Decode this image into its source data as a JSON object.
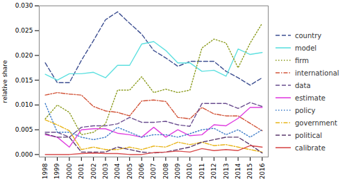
{
  "chart_data": {
    "type": "line",
    "y_label": "relative share",
    "x": [
      1998,
      1999,
      2000,
      2001,
      2002,
      2003,
      2004,
      2005,
      2006,
      2007,
      2008,
      2009,
      2010,
      2011,
      2012,
      2013,
      2014,
      2015,
      2016
    ],
    "xlim": [
      1997.5,
      2016.5
    ],
    "xticks": [
      1998,
      1999,
      2000,
      2001,
      2002,
      2003,
      2004,
      2005,
      2006,
      2007,
      2008,
      2009,
      2010,
      2011,
      2012,
      2013,
      2014,
      2015,
      2016
    ],
    "ylim": [
      -0.0005,
      0.03
    ],
    "yticks": [
      {
        "value": 0,
        "label": "0.000"
      },
      {
        "value": 0.005,
        "label": "0.005"
      },
      {
        "value": 0.01,
        "label": "0.010"
      },
      {
        "value": 0.015,
        "label": "0.015"
      },
      {
        "value": 0.02,
        "label": "0.020"
      },
      {
        "value": 0.025,
        "label": "0.025"
      },
      {
        "value": 0.03,
        "label": "0.030"
      }
    ],
    "grid": false,
    "legend": "right",
    "series": [
      {
        "name": "country",
        "color": "#3d4f91",
        "line_style": "dashed",
        "values": [
          0.0185,
          0.0145,
          0.0145,
          0.019,
          0.023,
          0.0272,
          0.0288,
          0.0265,
          0.0243,
          0.021,
          0.0195,
          0.0178,
          0.0188,
          0.0188,
          0.0188,
          0.0168,
          0.0155,
          0.014,
          0.0155
        ]
      },
      {
        "name": "model",
        "color": "#5ee0e0",
        "line_style": "solid",
        "values": [
          0.0162,
          0.015,
          0.0163,
          0.0163,
          0.0166,
          0.0155,
          0.018,
          0.018,
          0.0223,
          0.0228,
          0.021,
          0.0185,
          0.0185,
          0.0168,
          0.017,
          0.0158,
          0.0213,
          0.0202,
          0.0206
        ]
      },
      {
        "name": "firm",
        "color": "#8a9a1b",
        "line_style": "dotted",
        "values": [
          0.0072,
          0.01,
          0.0085,
          0.004,
          0.0045,
          0.0062,
          0.013,
          0.013,
          0.0157,
          0.0125,
          0.0132,
          0.0125,
          0.013,
          0.0215,
          0.0233,
          0.0225,
          0.0175,
          0.0225,
          0.0265
        ]
      },
      {
        "name": "international",
        "color": "#d2553a",
        "line_style": "dashdot",
        "values": [
          0.012,
          0.0125,
          0.0122,
          0.012,
          0.0097,
          0.0088,
          0.0085,
          0.0078,
          0.0108,
          0.011,
          0.0107,
          0.0075,
          0.0072,
          0.0095,
          0.0082,
          0.0078,
          0.0078,
          0.0063,
          0.0048
        ]
      },
      {
        "name": "data",
        "color": "#6a4d8f",
        "line_style": "dashed",
        "values": [
          0.0045,
          0.0045,
          0.0035,
          0.0055,
          0.0058,
          0.0058,
          0.0062,
          0.0075,
          0.0065,
          0.0065,
          0.0067,
          0.006,
          0.0057,
          0.0103,
          0.0103,
          0.0103,
          0.0093,
          0.0105,
          0.0097
        ]
      },
      {
        "name": "estimate",
        "color": "#e040e0",
        "line_style": "solid",
        "values": [
          0.004,
          0.0035,
          0.0015,
          0.005,
          0.0052,
          0.0052,
          0.0043,
          0.004,
          0.0035,
          0.0055,
          0.0035,
          0.005,
          0.0038,
          0.004,
          0.006,
          0.0058,
          0.0073,
          0.0095,
          0.0095
        ]
      },
      {
        "name": "policy",
        "color": "#3a7ac8",
        "line_style": "dotted",
        "values": [
          0.0103,
          0.0045,
          0.0045,
          0.0035,
          0.003,
          0.0035,
          0.0055,
          0.0045,
          0.0035,
          0.004,
          0.004,
          0.0035,
          0.0042,
          0.005,
          0.0053,
          0.004,
          0.005,
          0.0035,
          0.005
        ]
      },
      {
        "name": "government",
        "color": "#e8b51a",
        "line_style": "dashdot",
        "values": [
          0.007,
          0.006,
          0.0048,
          0.001,
          0.0015,
          0.001,
          0.001,
          0.0015,
          0.001,
          0.0017,
          0.0015,
          0.0025,
          0.002,
          0.0025,
          0.0018,
          0.002,
          0.0015,
          0.001,
          0.0005
        ]
      },
      {
        "name": "political",
        "color": "#5b3a6e",
        "line_style": "dashed",
        "values": [
          0.0042,
          0.0035,
          0.0035,
          0.0005,
          0.0005,
          0.0005,
          0.0015,
          0.001,
          0.0005,
          0.0003,
          0.0005,
          0.001,
          0.0015,
          0.0025,
          0.003,
          0.0035,
          0.0035,
          0.002,
          0.0003
        ]
      },
      {
        "name": "calibrate",
        "color": "#d84b4b",
        "line_style": "solid",
        "values": [
          0,
          0,
          0,
          0.0002,
          0.0003,
          0.0002,
          0.0002,
          0,
          0,
          0.0004,
          0.0005,
          0.0007,
          0.0005,
          0.0012,
          0.0008,
          0.001,
          0.0008,
          0.0018,
          0.0015
        ]
      }
    ]
  }
}
